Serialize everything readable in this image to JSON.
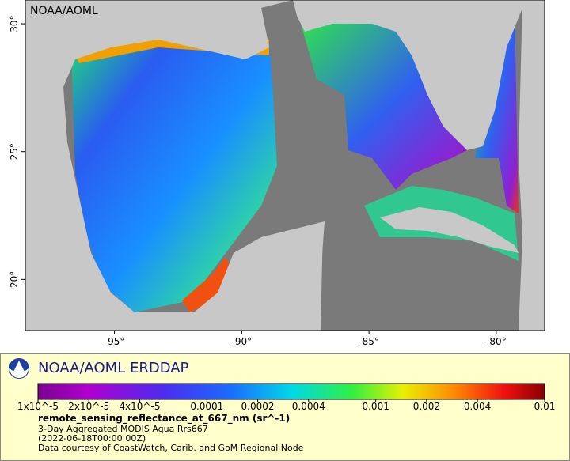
{
  "map": {
    "watermark": "NOAA/AOML",
    "xlim": [
      -98.5,
      -78.1
    ],
    "ylim": [
      18,
      30.93
    ],
    "xticks": [
      {
        "value": -95,
        "label": "-95°"
      },
      {
        "value": -90,
        "label": "-90°"
      },
      {
        "value": -85,
        "label": "-85°"
      },
      {
        "value": -80,
        "label": "-80°"
      }
    ],
    "yticks": [
      {
        "value": 20,
        "label": "20°"
      },
      {
        "value": 25,
        "label": "25°"
      },
      {
        "value": 30,
        "label": "30°"
      }
    ]
  },
  "legend": {
    "title": "NOAA/AOML ERDDAP",
    "scale": "log",
    "range": [
      1e-05,
      0.01
    ],
    "ticks": [
      {
        "value": 1e-05,
        "label": "1x10^-5"
      },
      {
        "value": 2e-05,
        "label": "2x10^-5"
      },
      {
        "value": 4e-05,
        "label": "4x10^-5"
      },
      0.0001,
      0.0002,
      0.0004,
      0.001,
      0.002,
      0.004,
      0.01
    ],
    "variable": "remote_sensing_reflectance_at_667_nm (sr^-1)",
    "lines": [
      "3-Day Aggregated MODIS Aqua Rrs667",
      "(2022-06-18T00:00:00Z)",
      "Data courtesy of CoastWatch, Carib. and GoM Regional Node"
    ]
  }
}
